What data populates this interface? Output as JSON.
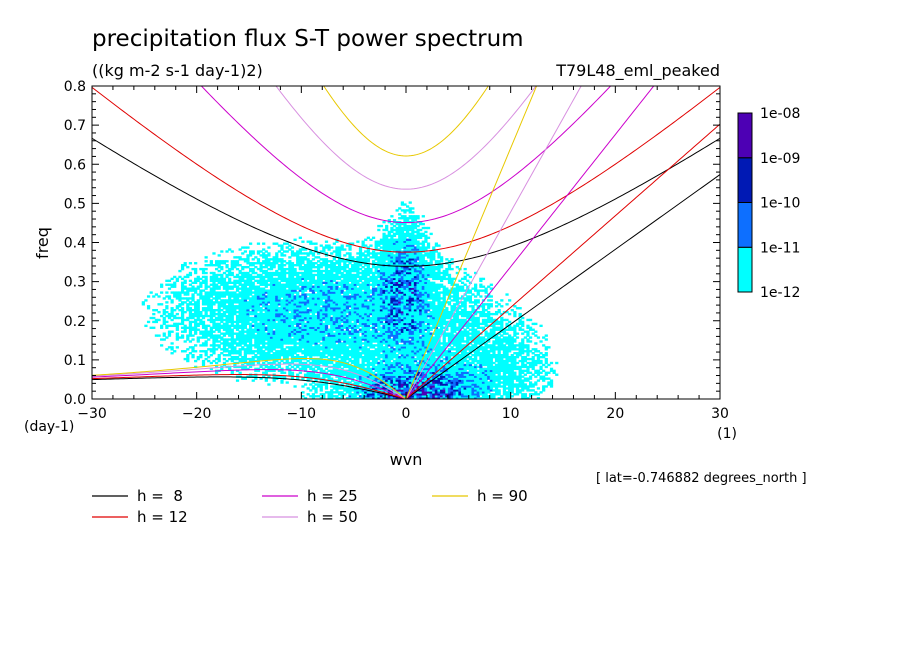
{
  "chart_data": {
    "type": "heatmap",
    "title": "precipitation flux S-T power spectrum",
    "subtitle": "((kg m-2 s-1 day-1)2)",
    "experiment": "T79L48_eml_peaked",
    "xlabel": "wvn",
    "ylabel": "freq",
    "x_unit": "(1)",
    "y_unit": "(day-1)",
    "xlim": [
      -30,
      30
    ],
    "ylim": [
      0,
      0.8
    ],
    "x_ticks": [
      -30,
      -20,
      -10,
      0,
      10,
      20,
      30
    ],
    "x_tick_labels": [
      "−30",
      "−20",
      "−10",
      "0",
      "10",
      "20",
      "30"
    ],
    "y_ticks": [
      0,
      0.1,
      0.2,
      0.3,
      0.4,
      0.5,
      0.6,
      0.7,
      0.8
    ],
    "y_tick_labels": [
      "0.0",
      "0.1",
      "0.2",
      "0.3",
      "0.4",
      "0.5",
      "0.6",
      "0.7",
      "0.8"
    ],
    "grid": false,
    "colorbar": {
      "levels": [
        "1e-12",
        "1e-11",
        "1e-10",
        "1e-09",
        "1e-08"
      ],
      "colors": [
        "#00ffff",
        "#0d6fff",
        "#0019b4",
        "#4d00b4"
      ]
    },
    "footnote": "[ lat=-0.746882 degrees_north ]",
    "dispersion_curves": [
      {
        "name": "h =  8",
        "h": 8,
        "color": "#000000"
      },
      {
        "name": "h = 12",
        "h": 12,
        "color": "#e00000"
      },
      {
        "name": "h = 25",
        "h": 25,
        "color": "#cc00cc"
      },
      {
        "name": "h = 50",
        "h": 50,
        "color": "#d890e0"
      },
      {
        "name": "h = 90",
        "h": 90,
        "color": "#e8c800"
      }
    ]
  }
}
